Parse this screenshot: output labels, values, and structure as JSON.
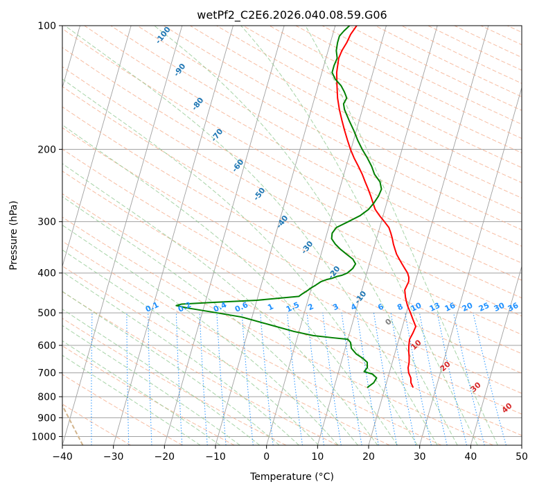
{
  "chart_data": {
    "type": "line",
    "title": "wetPf2_C2E6.2026.040.08.59.G06",
    "xlabel": "Temperature (°C)",
    "ylabel": "Pressure (hPa)",
    "xlim": [
      -40,
      50
    ],
    "ylim": [
      1050,
      100
    ],
    "y_scale": "log",
    "x_ticks": [
      -40,
      -30,
      -20,
      -10,
      0,
      10,
      20,
      30,
      40,
      50
    ],
    "x_tick_labels": [
      "−40",
      "−30",
      "−20",
      "−10",
      "0",
      "10",
      "20",
      "30",
      "40",
      "50"
    ],
    "y_ticks": [
      100,
      200,
      300,
      400,
      500,
      600,
      700,
      800,
      900,
      1000
    ],
    "y_tick_labels": [
      "100",
      "200",
      "300",
      "400",
      "500",
      "600",
      "700",
      "800",
      "900",
      "1000"
    ],
    "grid": true,
    "colors": {
      "temperature": "#ff0000",
      "dewpoint": "#008000",
      "isotherm": "#a0a0a0",
      "dry_adiabat": "#f4a582",
      "moist_adiabat": "#90c890",
      "mixing_ratio": "#1e90ff",
      "dry_adiabat_label": "#d62728",
      "moist_adiabat_label": "#1f77b4",
      "mixing_ratio_label": "#1e90ff",
      "ice_line": "#d2b48c",
      "zero_label": "#808080"
    },
    "series": [
      {
        "key": "temperature",
        "points": [
          [
            25.5,
            760
          ],
          [
            24.8,
            740
          ],
          [
            24.5,
            720
          ],
          [
            23.8,
            700
          ],
          [
            23.4,
            680
          ],
          [
            23.3,
            660
          ],
          [
            23.0,
            640
          ],
          [
            22.6,
            620
          ],
          [
            22.3,
            600
          ],
          [
            22.1,
            580
          ],
          [
            22.4,
            560
          ],
          [
            22.6,
            540
          ],
          [
            21.7,
            520
          ],
          [
            20.8,
            500
          ],
          [
            19.8,
            480
          ],
          [
            19.0,
            460
          ],
          [
            18.4,
            440
          ],
          [
            18.7,
            420
          ],
          [
            18.5,
            410
          ],
          [
            18.0,
            400
          ],
          [
            17.2,
            390
          ],
          [
            16.4,
            380
          ],
          [
            15.6,
            370
          ],
          [
            14.8,
            360
          ],
          [
            14.2,
            350
          ],
          [
            13.6,
            340
          ],
          [
            13.1,
            330
          ],
          [
            12.5,
            320
          ],
          [
            11.8,
            310
          ],
          [
            10.6,
            300
          ],
          [
            9.3,
            290
          ],
          [
            8.1,
            280
          ],
          [
            7.3,
            270
          ],
          [
            6.5,
            260
          ],
          [
            5.6,
            250
          ],
          [
            4.6,
            240
          ],
          [
            3.6,
            230
          ],
          [
            2.4,
            220
          ],
          [
            1.1,
            210
          ],
          [
            -0.1,
            200
          ],
          [
            -1.2,
            190
          ],
          [
            -2.3,
            180
          ],
          [
            -3.4,
            170
          ],
          [
            -4.5,
            160
          ],
          [
            -5.5,
            150
          ],
          [
            -6.3,
            140
          ],
          [
            -7.1,
            130
          ],
          [
            -7.5,
            120
          ],
          [
            -7.3,
            115
          ],
          [
            -6.8,
            110
          ],
          [
            -6.5,
            105
          ],
          [
            -5.8,
            100
          ]
        ]
      },
      {
        "key": "dewpoint",
        "points": [
          [
            16.5,
            760
          ],
          [
            17.5,
            740
          ],
          [
            17.8,
            720
          ],
          [
            16.8,
            705
          ],
          [
            15.0,
            695
          ],
          [
            15.4,
            680
          ],
          [
            15.1,
            660
          ],
          [
            14.0,
            645
          ],
          [
            12.5,
            630
          ],
          [
            11.2,
            610
          ],
          [
            10.7,
            590
          ],
          [
            10.0,
            580
          ],
          [
            7.0,
            575
          ],
          [
            3.0,
            568
          ],
          [
            -1.0,
            555
          ],
          [
            -6.0,
            535
          ],
          [
            -12.0,
            512
          ],
          [
            -18.0,
            498
          ],
          [
            -23.0,
            487
          ],
          [
            -25.5,
            480
          ],
          [
            -24.5,
            476
          ],
          [
            -19.0,
            472
          ],
          [
            -10.0,
            466
          ],
          [
            -2.0,
            456
          ],
          [
            -1.5,
            450
          ],
          [
            -1.0,
            445
          ],
          [
            -0.5,
            440
          ],
          [
            -0.2,
            436
          ],
          [
            0.7,
            428
          ],
          [
            1.5,
            420
          ],
          [
            2.5,
            415
          ],
          [
            3.5,
            412
          ],
          [
            4.3,
            408
          ],
          [
            5.3,
            405
          ],
          [
            6.2,
            400
          ],
          [
            7.0,
            390
          ],
          [
            7.3,
            380
          ],
          [
            6.5,
            370
          ],
          [
            5.0,
            360
          ],
          [
            3.5,
            350
          ],
          [
            2.2,
            340
          ],
          [
            1.2,
            330
          ],
          [
            1.0,
            320
          ],
          [
            1.5,
            310
          ],
          [
            3.5,
            300
          ],
          [
            5.5,
            290
          ],
          [
            6.8,
            280
          ],
          [
            7.5,
            270
          ],
          [
            8.0,
            260
          ],
          [
            8.2,
            250
          ],
          [
            7.5,
            240
          ],
          [
            6.0,
            230
          ],
          [
            5.0,
            220
          ],
          [
            3.7,
            210
          ],
          [
            2.2,
            200
          ],
          [
            0.8,
            190
          ],
          [
            -0.5,
            180
          ],
          [
            -2.0,
            170
          ],
          [
            -3.5,
            160
          ],
          [
            -4.0,
            155
          ],
          [
            -3.7,
            150
          ],
          [
            -4.5,
            145
          ],
          [
            -5.5,
            140
          ],
          [
            -7.0,
            135
          ],
          [
            -8.0,
            130
          ],
          [
            -8.0,
            125
          ],
          [
            -7.8,
            120
          ],
          [
            -8.4,
            115
          ],
          [
            -8.6,
            110
          ],
          [
            -8.6,
            106
          ],
          [
            -8.0,
            103
          ],
          [
            -7.2,
            100
          ]
        ]
      }
    ],
    "dry_adiabat_labels": [
      "0",
      "10",
      "20",
      "30",
      "40"
    ],
    "moist_adiabat_labels": [
      "-100",
      "-90",
      "-80",
      "-70",
      "-60",
      "-50",
      "-40",
      "-30",
      "-20",
      "-10"
    ],
    "mixing_ratio_labels": [
      "0.1",
      "0.2",
      "0.4",
      "0.6",
      "1",
      "1.5",
      "2",
      "3",
      "4",
      "6",
      "8",
      "10",
      "13",
      "16",
      "20",
      "25",
      "30",
      "36"
    ]
  }
}
